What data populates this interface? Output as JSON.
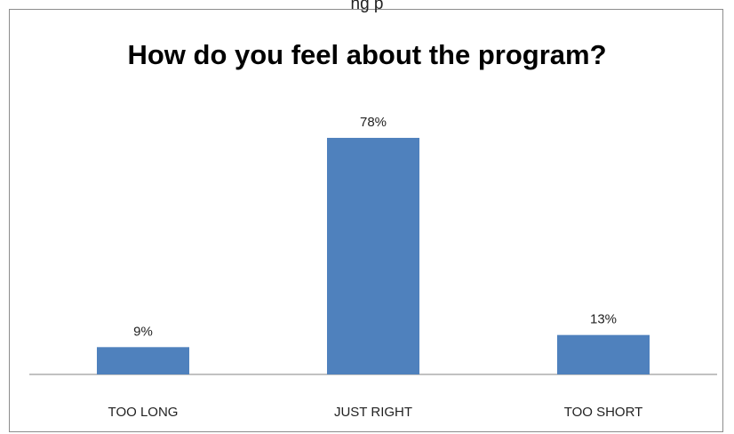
{
  "top_fragment": "ng  p",
  "chart_data": {
    "type": "bar",
    "title": "How do you feel about the program?",
    "categories": [
      "TOO LONG",
      "JUST RIGHT",
      "TOO SHORT"
    ],
    "values": [
      9,
      78,
      13
    ],
    "value_labels": [
      "9%",
      "78%",
      "13%"
    ],
    "xlabel": "",
    "ylabel": "",
    "ylim": [
      0,
      100
    ],
    "grid": false,
    "legend": "none",
    "bar_color": "#4f81bd",
    "axis_color": "#868686"
  }
}
